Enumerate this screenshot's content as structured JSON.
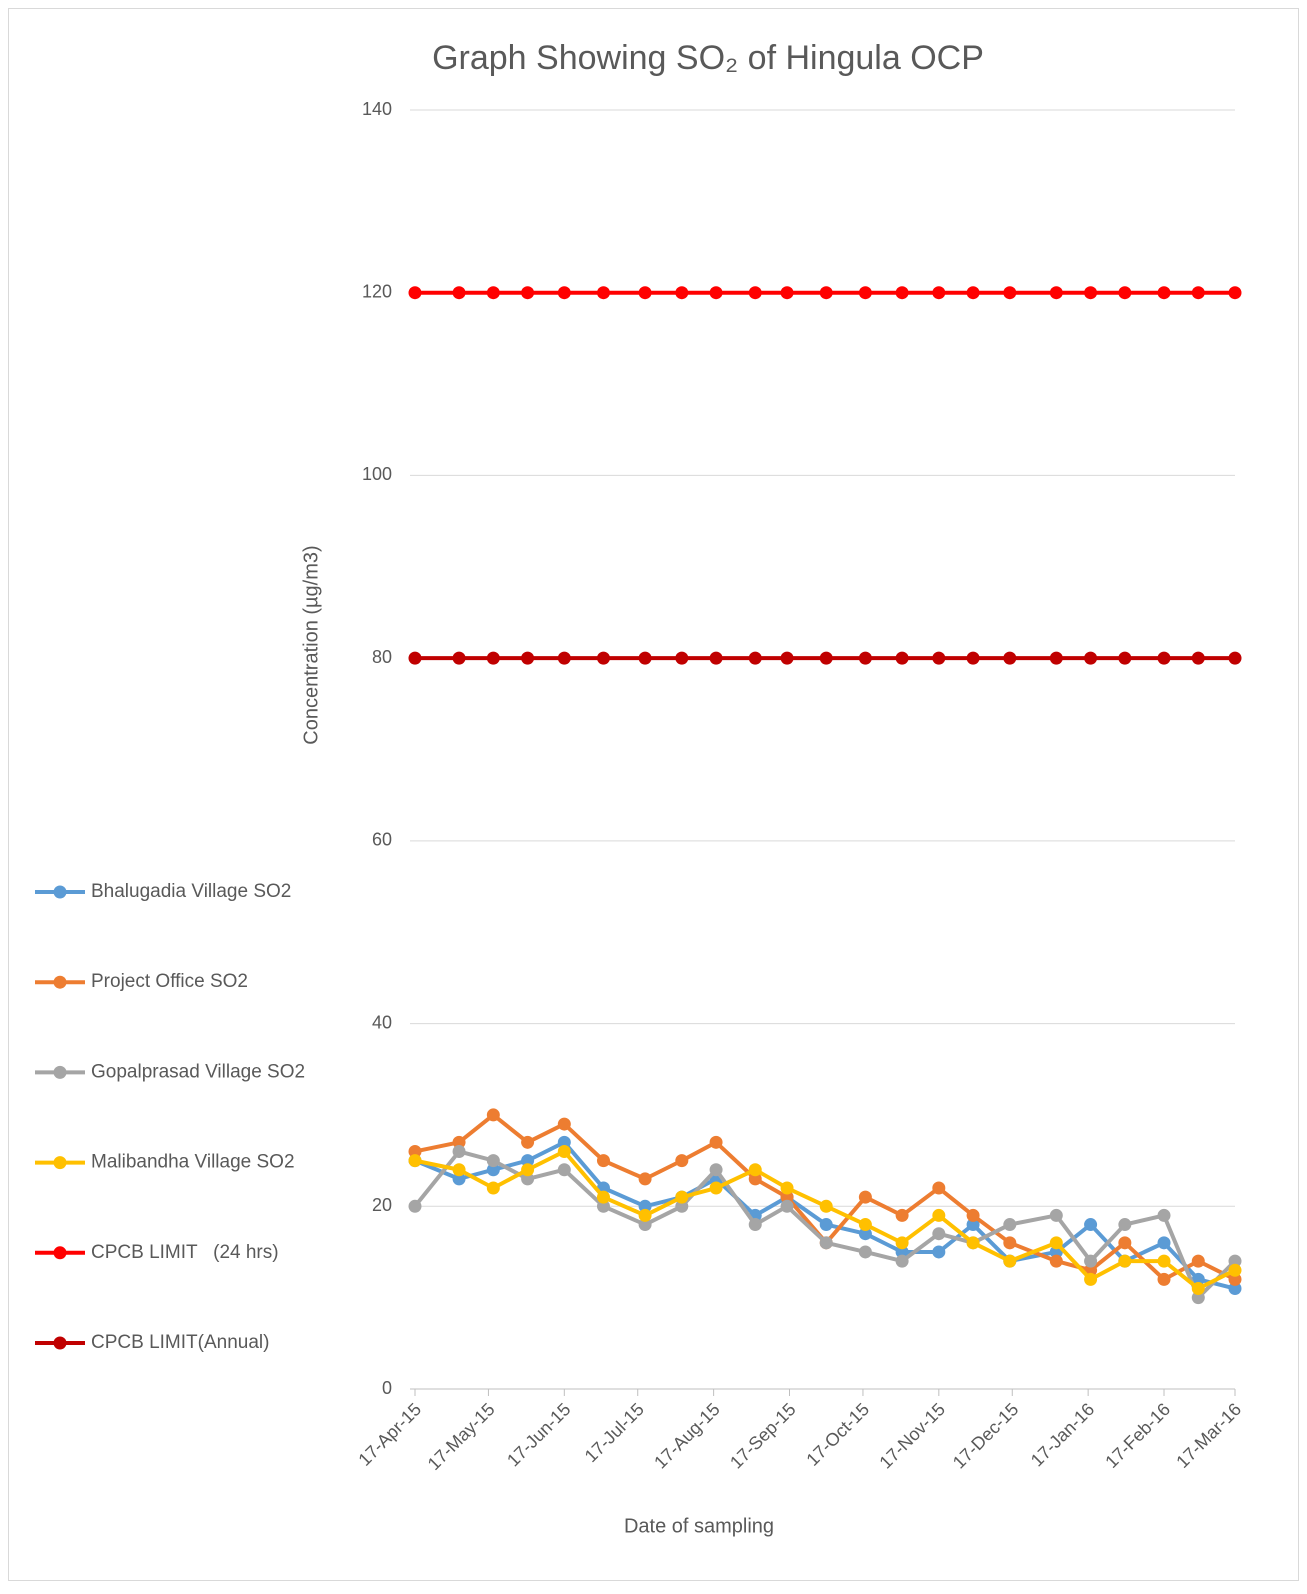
{
  "chart_data": {
    "type": "line",
    "title": "Graph Showing SO₂ of Hingula OCP",
    "x_label": "Date of sampling",
    "y_label": "Concentration (µg/m3)",
    "x": [
      "2015-04-17",
      "2015-05-05",
      "2015-05-19",
      "2015-06-02",
      "2015-06-17",
      "2015-07-03",
      "2015-07-20",
      "2015-08-04",
      "2015-08-18",
      "2015-09-03",
      "2015-09-16",
      "2015-10-02",
      "2015-10-18",
      "2015-11-02",
      "2015-11-17",
      "2015-12-01",
      "2015-12-16",
      "2016-01-04",
      "2016-01-18",
      "2016-02-01",
      "2016-02-17",
      "2016-03-02",
      "2016-03-17"
    ],
    "series": [
      {
        "name": "Bhalugadia Village SO2",
        "color": "#5b9bd5",
        "values": [
          25,
          23,
          24,
          25,
          27,
          22,
          20,
          21,
          23,
          19,
          21,
          18,
          17,
          15,
          15,
          18,
          14,
          15,
          18,
          14,
          16,
          12,
          11
        ]
      },
      {
        "name": "Project Office SO2",
        "color": "#ed7d31",
        "values": [
          26,
          27,
          30,
          27,
          29,
          25,
          23,
          25,
          27,
          23,
          21,
          16,
          21,
          19,
          22,
          19,
          16,
          14,
          13,
          16,
          12,
          14,
          12
        ]
      },
      {
        "name": "Gopalprasad Village SO2",
        "color": "#a5a5a5",
        "values": [
          20,
          26,
          25,
          23,
          24,
          20,
          18,
          20,
          24,
          18,
          20,
          16,
          15,
          14,
          17,
          16,
          18,
          19,
          14,
          18,
          19,
          10,
          14
        ]
      },
      {
        "name": "Malibandha Village SO2",
        "color": "#ffc000",
        "values": [
          25,
          24,
          22,
          24,
          26,
          21,
          19,
          21,
          22,
          24,
          22,
          20,
          18,
          16,
          19,
          16,
          14,
          16,
          12,
          14,
          14,
          11,
          13
        ]
      },
      {
        "name": "CPCB LIMIT   (24 hrs)",
        "color": "#ff0000",
        "values": [
          120,
          120,
          120,
          120,
          120,
          120,
          120,
          120,
          120,
          120,
          120,
          120,
          120,
          120,
          120,
          120,
          120,
          120,
          120,
          120,
          120,
          120,
          120
        ]
      },
      {
        "name": "CPCB LIMIT(Annual)",
        "color": "#c00000",
        "values": [
          80,
          80,
          80,
          80,
          80,
          80,
          80,
          80,
          80,
          80,
          80,
          80,
          80,
          80,
          80,
          80,
          80,
          80,
          80,
          80,
          80,
          80,
          80
        ]
      }
    ],
    "xlim": [
      "2015-04-17",
      "2016-03-17"
    ],
    "xticks": [
      {
        "value": "2015-04-17",
        "label": "17-Apr-15"
      },
      {
        "value": "2015-05-17",
        "label": "17-May-15"
      },
      {
        "value": "2015-06-17",
        "label": "17-Jun-15"
      },
      {
        "value": "2015-07-17",
        "label": "17-Jul-15"
      },
      {
        "value": "2015-08-17",
        "label": "17-Aug-15"
      },
      {
        "value": "2015-09-17",
        "label": "17-Sep-15"
      },
      {
        "value": "2015-10-17",
        "label": "17-Oct-15"
      },
      {
        "value": "2015-11-17",
        "label": "17-Nov-15"
      },
      {
        "value": "2015-12-17",
        "label": "17-Dec-15"
      },
      {
        "value": "2016-01-17",
        "label": "17-Jan-16"
      },
      {
        "value": "2016-02-17",
        "label": "17-Feb-16"
      },
      {
        "value": "2016-03-17",
        "label": "17-Mar-16"
      }
    ],
    "ylim": [
      0,
      140
    ],
    "yticks": [
      0,
      20,
      40,
      60,
      80,
      100,
      120,
      140
    ],
    "grid": true,
    "legend": "left"
  }
}
